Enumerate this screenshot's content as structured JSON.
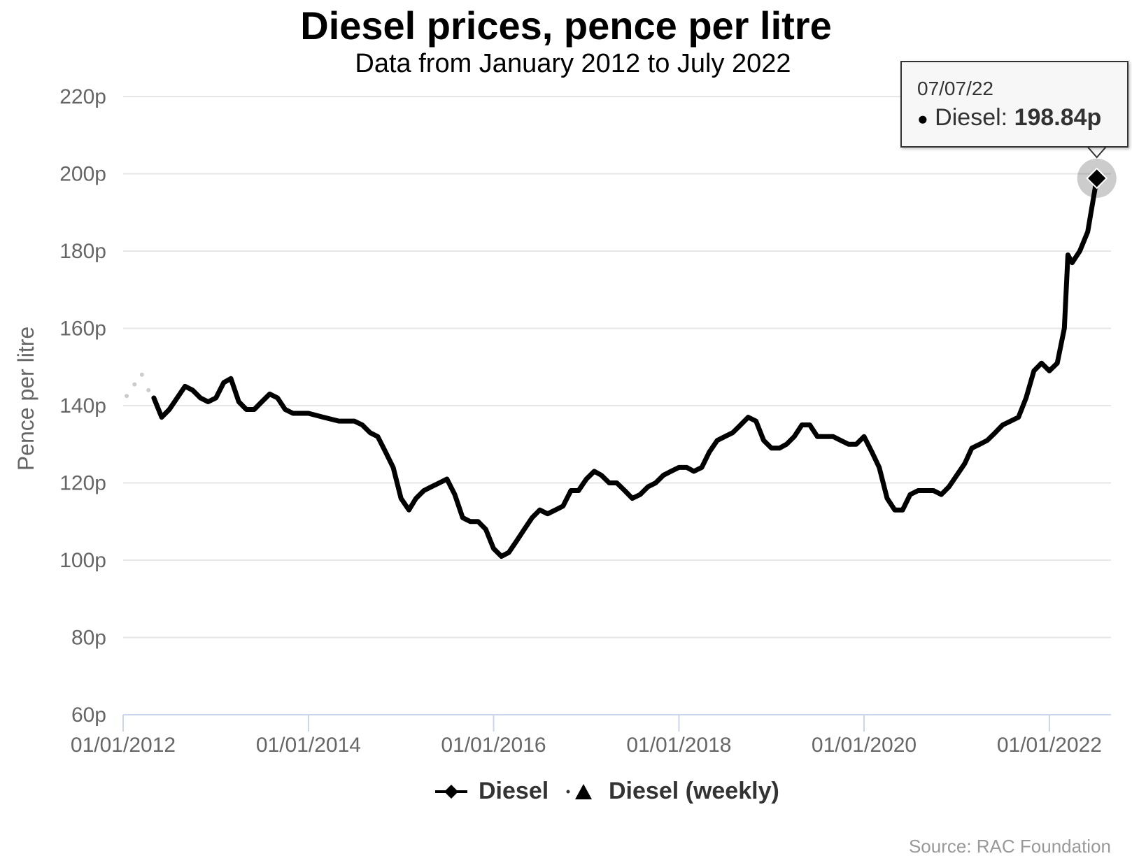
{
  "chart_data": {
    "type": "line",
    "title": "Diesel prices, pence per litre",
    "subtitle": "Data from January 2012 to July 2022",
    "ylabel": "Pence per litre",
    "ylim": [
      60,
      220
    ],
    "yticks": [
      "220p",
      "200p",
      "180p",
      "160p",
      "140p",
      "120p",
      "100p",
      "80p",
      "60p"
    ],
    "ytick_values": [
      220,
      200,
      180,
      160,
      140,
      120,
      100,
      80,
      60
    ],
    "xticks": [
      "01/01/2012",
      "01/01/2014",
      "01/01/2016",
      "01/01/2018",
      "01/01/2020",
      "01/01/2022"
    ],
    "xlim": [
      "2012-01-01",
      "2022-09-01"
    ],
    "grid": true,
    "legend_position": "bottom-center",
    "series": [
      {
        "name": "Diesel",
        "color": "#000000",
        "marker": "diamond",
        "points": [
          [
            "2012-05-01",
            142
          ],
          [
            "2012-06-01",
            137
          ],
          [
            "2012-07-01",
            139
          ],
          [
            "2012-08-01",
            142
          ],
          [
            "2012-09-01",
            145
          ],
          [
            "2012-10-01",
            144
          ],
          [
            "2012-11-01",
            142
          ],
          [
            "2012-12-01",
            141
          ],
          [
            "2013-01-01",
            142
          ],
          [
            "2013-02-01",
            146
          ],
          [
            "2013-03-01",
            147
          ],
          [
            "2013-04-01",
            141
          ],
          [
            "2013-05-01",
            139
          ],
          [
            "2013-06-01",
            139
          ],
          [
            "2013-07-01",
            141
          ],
          [
            "2013-08-01",
            143
          ],
          [
            "2013-09-01",
            142
          ],
          [
            "2013-10-01",
            139
          ],
          [
            "2013-11-01",
            138
          ],
          [
            "2013-12-01",
            138
          ],
          [
            "2014-01-01",
            138
          ],
          [
            "2014-03-01",
            137
          ],
          [
            "2014-05-01",
            136
          ],
          [
            "2014-07-01",
            136
          ],
          [
            "2014-08-01",
            135
          ],
          [
            "2014-09-01",
            133
          ],
          [
            "2014-10-01",
            132
          ],
          [
            "2014-11-01",
            128
          ],
          [
            "2014-12-01",
            124
          ],
          [
            "2015-01-01",
            116
          ],
          [
            "2015-02-01",
            113
          ],
          [
            "2015-03-01",
            116
          ],
          [
            "2015-04-01",
            118
          ],
          [
            "2015-05-01",
            119
          ],
          [
            "2015-06-01",
            120
          ],
          [
            "2015-07-01",
            121
          ],
          [
            "2015-08-01",
            117
          ],
          [
            "2015-09-01",
            111
          ],
          [
            "2015-10-01",
            110
          ],
          [
            "2015-11-01",
            110
          ],
          [
            "2015-12-01",
            108
          ],
          [
            "2016-01-01",
            103
          ],
          [
            "2016-02-01",
            101
          ],
          [
            "2016-03-01",
            102
          ],
          [
            "2016-04-01",
            105
          ],
          [
            "2016-05-01",
            108
          ],
          [
            "2016-06-01",
            111
          ],
          [
            "2016-07-01",
            113
          ],
          [
            "2016-08-01",
            112
          ],
          [
            "2016-09-01",
            113
          ],
          [
            "2016-10-01",
            114
          ],
          [
            "2016-11-01",
            118
          ],
          [
            "2016-12-01",
            118
          ],
          [
            "2017-01-01",
            121
          ],
          [
            "2017-02-01",
            123
          ],
          [
            "2017-03-01",
            122
          ],
          [
            "2017-04-01",
            120
          ],
          [
            "2017-05-01",
            120
          ],
          [
            "2017-06-01",
            118
          ],
          [
            "2017-07-01",
            116
          ],
          [
            "2017-08-01",
            117
          ],
          [
            "2017-09-01",
            119
          ],
          [
            "2017-10-01",
            120
          ],
          [
            "2017-11-01",
            122
          ],
          [
            "2017-12-01",
            123
          ],
          [
            "2018-01-01",
            124
          ],
          [
            "2018-02-01",
            124
          ],
          [
            "2018-03-01",
            123
          ],
          [
            "2018-04-01",
            124
          ],
          [
            "2018-05-01",
            128
          ],
          [
            "2018-06-01",
            131
          ],
          [
            "2018-07-01",
            132
          ],
          [
            "2018-08-01",
            133
          ],
          [
            "2018-09-01",
            135
          ],
          [
            "2018-10-01",
            137
          ],
          [
            "2018-11-01",
            136
          ],
          [
            "2018-12-01",
            131
          ],
          [
            "2019-01-01",
            129
          ],
          [
            "2019-02-01",
            129
          ],
          [
            "2019-03-01",
            130
          ],
          [
            "2019-04-01",
            132
          ],
          [
            "2019-05-01",
            135
          ],
          [
            "2019-06-01",
            135
          ],
          [
            "2019-07-01",
            132
          ],
          [
            "2019-08-01",
            132
          ],
          [
            "2019-09-01",
            132
          ],
          [
            "2019-10-01",
            131
          ],
          [
            "2019-11-01",
            130
          ],
          [
            "2019-12-01",
            130
          ],
          [
            "2020-01-01",
            132
          ],
          [
            "2020-02-01",
            128
          ],
          [
            "2020-03-01",
            124
          ],
          [
            "2020-04-01",
            116
          ],
          [
            "2020-05-01",
            113
          ],
          [
            "2020-06-01",
            113
          ],
          [
            "2020-07-01",
            117
          ],
          [
            "2020-08-01",
            118
          ],
          [
            "2020-09-01",
            118
          ],
          [
            "2020-10-01",
            118
          ],
          [
            "2020-11-01",
            117
          ],
          [
            "2020-12-01",
            119
          ],
          [
            "2021-01-01",
            122
          ],
          [
            "2021-02-01",
            125
          ],
          [
            "2021-03-01",
            129
          ],
          [
            "2021-04-01",
            130
          ],
          [
            "2021-05-01",
            131
          ],
          [
            "2021-06-01",
            133
          ],
          [
            "2021-07-01",
            135
          ],
          [
            "2021-08-01",
            136
          ],
          [
            "2021-09-01",
            137
          ],
          [
            "2021-10-01",
            142
          ],
          [
            "2021-11-01",
            149
          ],
          [
            "2021-12-01",
            151
          ],
          [
            "2022-01-01",
            149
          ],
          [
            "2022-02-01",
            151
          ],
          [
            "2022-03-01",
            160
          ],
          [
            "2022-03-15",
            179
          ],
          [
            "2022-04-01",
            177
          ],
          [
            "2022-05-01",
            180
          ],
          [
            "2022-06-01",
            185
          ],
          [
            "2022-07-07",
            198.84
          ]
        ]
      },
      {
        "name": "Diesel (weekly)",
        "color": "#cccccc",
        "marker": "triangle",
        "points": [
          [
            "2012-01-15",
            142.5
          ],
          [
            "2012-02-15",
            145.5
          ],
          [
            "2012-03-15",
            148.0
          ],
          [
            "2012-04-10",
            144.0
          ]
        ]
      }
    ],
    "highlight": {
      "date": "2022-07-07",
      "value": 198.84
    }
  },
  "tooltip": {
    "date": "07/07/22",
    "bullet": "●",
    "label": "Diesel:",
    "value": "198.84p"
  },
  "legend": {
    "items": [
      {
        "label": "Diesel"
      },
      {
        "label": "Diesel (weekly)"
      }
    ]
  },
  "source": "Source: RAC Foundation"
}
